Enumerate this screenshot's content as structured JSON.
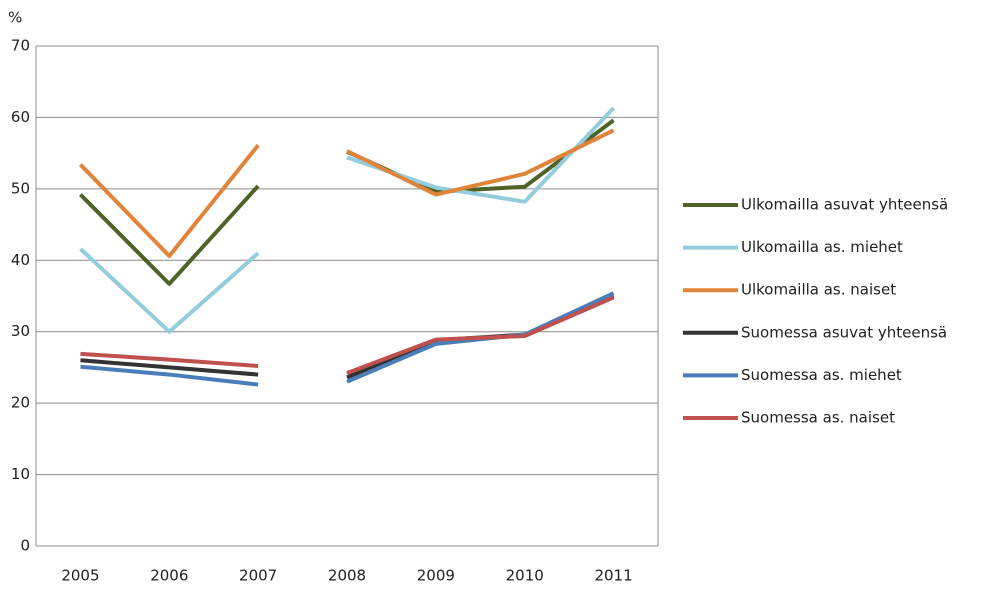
{
  "chart_data": {
    "type": "line",
    "y_unit": "%",
    "categories": [
      "2005",
      "2006",
      "2007",
      "2008",
      "2009",
      "2010",
      "2011"
    ],
    "gap_after": "2007",
    "series": [
      {
        "name": "Ulkomailla asuvat yhteensä",
        "color": "#4f6228",
        "values": [
          49.2,
          36.7,
          50.4,
          55.2,
          49.6,
          50.3,
          59.6
        ]
      },
      {
        "name": "Ulkomailla as. miehet",
        "color": "#93cddd",
        "values": [
          41.6,
          30,
          41,
          54.4,
          50.2,
          48.2,
          61.3
        ]
      },
      {
        "name": "Ulkomailla as. naiset",
        "color": "#e0843a",
        "values": [
          53.4,
          40.6,
          56.1,
          55.3,
          49.2,
          52.1,
          58.2
        ]
      },
      {
        "name": "Suomessa asuvat yhteensä",
        "color": "#333333",
        "values": [
          26,
          25,
          24,
          23.6,
          28.8,
          29.6,
          35
        ]
      },
      {
        "name": "Suomessa as. miehet",
        "color": "#4a7ebb",
        "values": [
          25.1,
          24,
          22.6,
          23,
          28.3,
          29.6,
          35.4
        ]
      },
      {
        "name": "Suomessa as. naiset",
        "color": "#c0504d",
        "values": [
          26.9,
          26.1,
          25.2,
          24.2,
          28.9,
          29.4,
          34.8
        ]
      }
    ],
    "ylim": [
      0,
      70
    ],
    "yticks": [
      0,
      10,
      20,
      30,
      40,
      50,
      60,
      70
    ],
    "grid": true
  }
}
